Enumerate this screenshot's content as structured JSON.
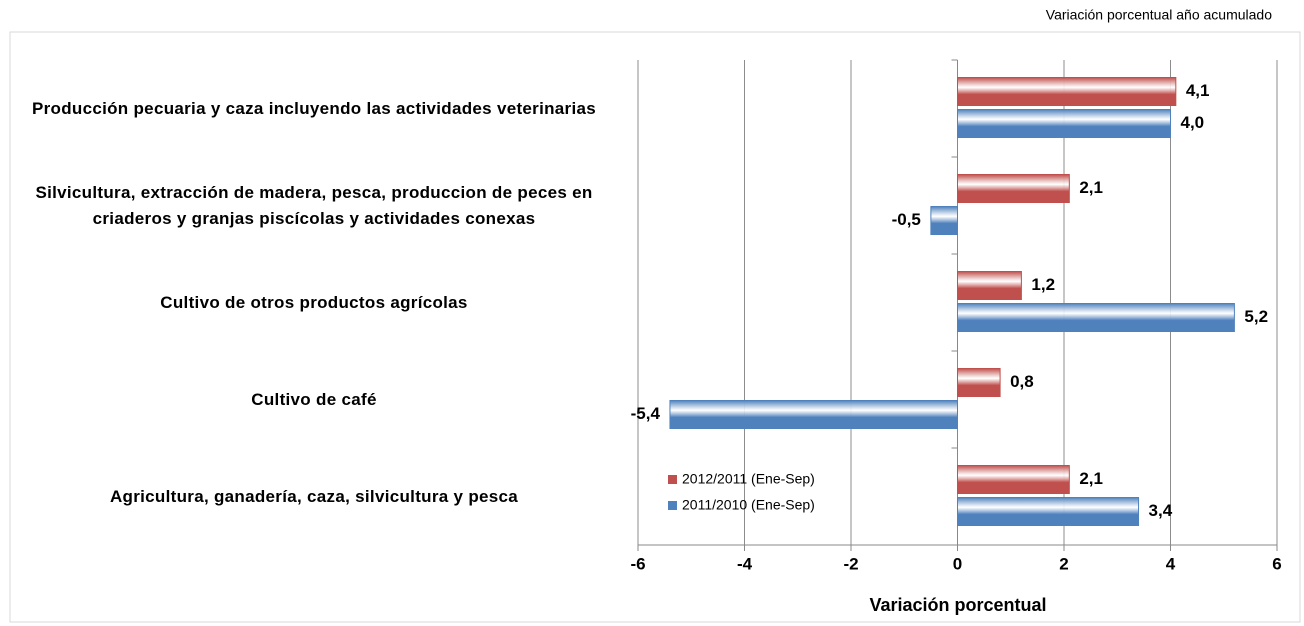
{
  "chart_data": {
    "type": "hbar",
    "subtitle": "Variación porcentual año acumulado",
    "xlabel": "Variación porcentual",
    "categories": [
      "Producción pecuaria y caza incluyendo las actividades veterinarias",
      "Silvicultura, extracción de madera, pesca, produccion de peces en criaderos y granjas piscícolas y actividades conexas",
      "Cultivo de otros productos agrícolas",
      "Cultivo de café",
      "Agricultura, ganadería, caza, silvicultura y pesca"
    ],
    "series": [
      {
        "name": "2012/2011 (Ene-Sep)",
        "color": "#c0504d",
        "values": [
          4.1,
          2.1,
          1.2,
          0.8,
          2.1
        ],
        "value_labels": [
          "4,1",
          "2,1",
          "1,2",
          "0,8",
          "2,1"
        ]
      },
      {
        "name": "2011/2010 (Ene-Sep)",
        "color": "#4f81bd",
        "values": [
          4.0,
          -0.5,
          5.2,
          -5.4,
          3.4
        ],
        "value_labels": [
          "4,0",
          "-0,5",
          "5,2",
          "-5,4",
          "3,4"
        ]
      }
    ],
    "xlim": [
      -6,
      6
    ],
    "xticks": [
      -6,
      -4,
      -2,
      0,
      2,
      4,
      6
    ],
    "grid": true,
    "legend": "lower left"
  }
}
